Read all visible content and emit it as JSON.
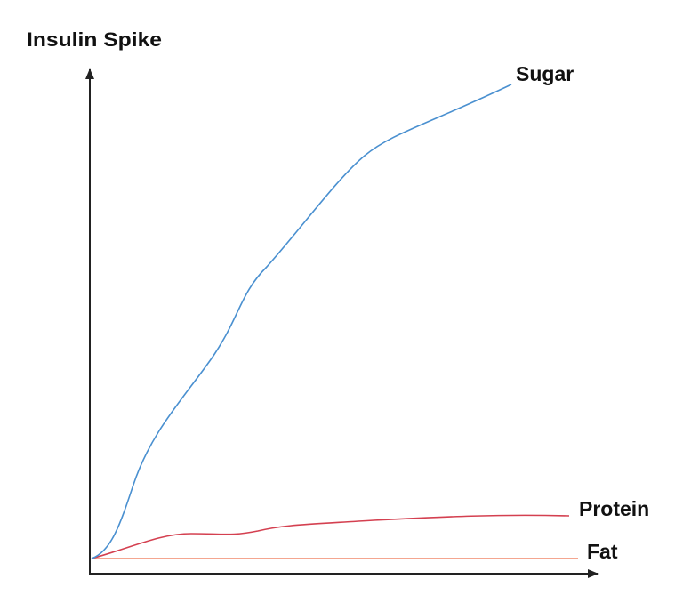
{
  "axis_label": "Insulin Spike",
  "curves": [
    {
      "label": "Sugar"
    },
    {
      "label": "Protein"
    },
    {
      "label": "Fat"
    }
  ]
}
